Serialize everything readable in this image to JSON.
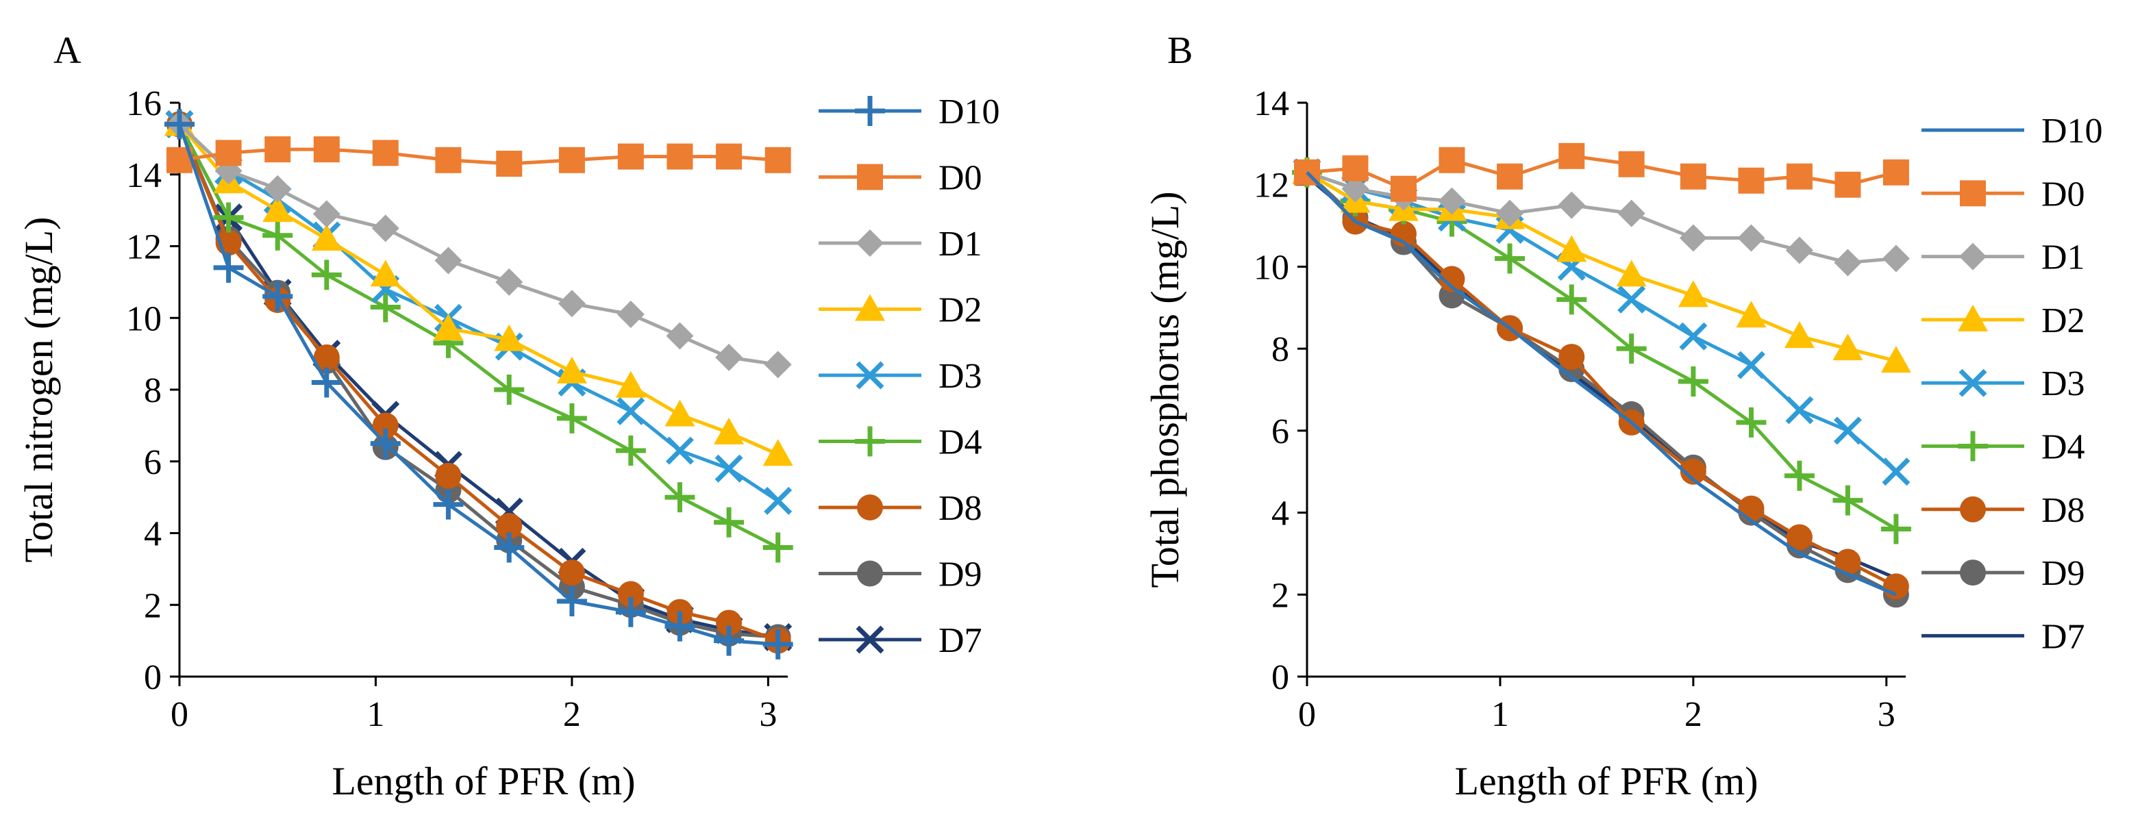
{
  "chart_data": [
    {
      "type": "line",
      "panel_label": "A",
      "xlabel": "Length of PFR (m)",
      "ylabel": "Total nitrogen (mg/L)",
      "xlim": [
        0,
        3.1
      ],
      "ylim": [
        0,
        16
      ],
      "xticks": [
        0,
        1,
        2,
        3
      ],
      "yticks": [
        0,
        2,
        4,
        6,
        8,
        10,
        12,
        14,
        16
      ],
      "legend_position": "right",
      "x": [
        0,
        0.25,
        0.5,
        0.75,
        1.05,
        1.37,
        1.68,
        2.0,
        2.3,
        2.55,
        2.8,
        3.05
      ],
      "series": [
        {
          "name": "D10",
          "color": "#2E75B6",
          "marker": "plus",
          "values": [
            15.4,
            11.4,
            10.6,
            8.2,
            6.5,
            4.8,
            3.6,
            2.1,
            1.8,
            1.4,
            1.0,
            0.9
          ]
        },
        {
          "name": "D0",
          "color": "#ED7D31",
          "marker": "square",
          "values": [
            14.4,
            14.6,
            14.7,
            14.7,
            14.6,
            14.4,
            14.3,
            14.4,
            14.5,
            14.5,
            14.5,
            14.4
          ]
        },
        {
          "name": "D1",
          "color": "#A5A5A5",
          "marker": "diamond",
          "values": [
            15.4,
            14.1,
            13.6,
            12.9,
            12.5,
            11.6,
            11.0,
            10.4,
            10.1,
            9.5,
            8.9,
            8.7
          ]
        },
        {
          "name": "D2",
          "color": "#FFC000",
          "marker": "triangle",
          "values": [
            15.4,
            13.8,
            13.0,
            12.2,
            11.2,
            9.7,
            9.4,
            8.5,
            8.1,
            7.3,
            6.8,
            6.2
          ]
        },
        {
          "name": "D3",
          "color": "#2F9BD7",
          "marker": "x",
          "values": [
            15.4,
            14.1,
            13.3,
            12.3,
            10.8,
            10.0,
            9.2,
            8.2,
            7.4,
            6.3,
            5.8,
            4.9
          ]
        },
        {
          "name": "D4",
          "color": "#5CB531",
          "marker": "plus",
          "values": [
            15.4,
            12.8,
            12.3,
            11.2,
            10.3,
            9.3,
            8.0,
            7.2,
            6.3,
            5.0,
            4.3,
            3.6
          ]
        },
        {
          "name": "D8",
          "color": "#C55A11",
          "marker": "circle",
          "values": [
            15.4,
            12.1,
            10.5,
            8.9,
            7.0,
            5.6,
            4.2,
            2.9,
            2.3,
            1.8,
            1.5,
            1.0
          ]
        },
        {
          "name": "D9",
          "color": "#666666",
          "marker": "circle",
          "values": [
            15.4,
            12.2,
            10.7,
            8.8,
            6.4,
            5.2,
            3.8,
            2.5,
            2.0,
            1.5,
            1.2,
            1.1
          ]
        },
        {
          "name": "D7",
          "color": "#1F3D73",
          "marker": "x",
          "values": [
            15.4,
            12.8,
            10.7,
            9.0,
            7.3,
            5.9,
            4.6,
            3.2,
            2.1,
            1.6,
            1.3,
            1.1
          ]
        }
      ]
    },
    {
      "type": "line",
      "panel_label": "B",
      "xlabel": "Length of PFR (m)",
      "ylabel": "Total phosphorus (mg/L)",
      "xlim": [
        0,
        3.1
      ],
      "ylim": [
        0,
        14
      ],
      "xticks": [
        0,
        1,
        2,
        3
      ],
      "yticks": [
        0,
        2,
        4,
        6,
        8,
        10,
        12,
        14
      ],
      "legend_position": "right",
      "x": [
        0,
        0.25,
        0.5,
        0.75,
        1.05,
        1.37,
        1.68,
        2.0,
        2.3,
        2.55,
        2.8,
        3.05
      ],
      "series": [
        {
          "name": "D10",
          "color": "#2E75B6",
          "marker": "none",
          "values": [
            12.3,
            11.1,
            10.6,
            9.5,
            8.5,
            7.3,
            6.2,
            4.8,
            3.8,
            3.0,
            2.5,
            2.0
          ]
        },
        {
          "name": "D0",
          "color": "#ED7D31",
          "marker": "square",
          "values": [
            12.3,
            12.4,
            11.9,
            12.6,
            12.2,
            12.7,
            12.5,
            12.2,
            12.1,
            12.2,
            12.0,
            12.3
          ]
        },
        {
          "name": "D1",
          "color": "#A5A5A5",
          "marker": "diamond",
          "values": [
            12.3,
            11.9,
            11.7,
            11.6,
            11.3,
            11.5,
            11.3,
            10.7,
            10.7,
            10.4,
            10.1,
            10.2
          ]
        },
        {
          "name": "D2",
          "color": "#FFC000",
          "marker": "triangle",
          "values": [
            12.3,
            11.6,
            11.4,
            11.4,
            11.2,
            10.4,
            9.8,
            9.3,
            8.8,
            8.3,
            8.0,
            7.7
          ]
        },
        {
          "name": "D3",
          "color": "#2F9BD7",
          "marker": "x",
          "values": [
            12.3,
            11.9,
            11.6,
            11.2,
            10.9,
            10.0,
            9.2,
            8.3,
            7.6,
            6.5,
            6.0,
            5.0
          ]
        },
        {
          "name": "D4",
          "color": "#5CB531",
          "marker": "plus",
          "values": [
            12.3,
            11.6,
            11.4,
            11.1,
            10.2,
            9.2,
            8.0,
            7.2,
            6.2,
            4.9,
            4.3,
            3.6
          ]
        },
        {
          "name": "D8",
          "color": "#C55A11",
          "marker": "circle",
          "values": [
            12.3,
            11.1,
            10.8,
            9.7,
            8.5,
            7.8,
            6.2,
            5.0,
            4.1,
            3.4,
            2.8,
            2.2
          ]
        },
        {
          "name": "D9",
          "color": "#666666",
          "marker": "circle",
          "values": [
            12.3,
            11.2,
            10.6,
            9.3,
            8.5,
            7.5,
            6.4,
            5.1,
            4.0,
            3.2,
            2.6,
            2.0
          ]
        },
        {
          "name": "D7",
          "color": "#1F3D73",
          "marker": "none",
          "values": [
            12.2,
            11.2,
            10.7,
            9.6,
            8.5,
            7.4,
            6.3,
            5.0,
            4.1,
            3.3,
            2.9,
            2.4
          ]
        }
      ]
    }
  ]
}
